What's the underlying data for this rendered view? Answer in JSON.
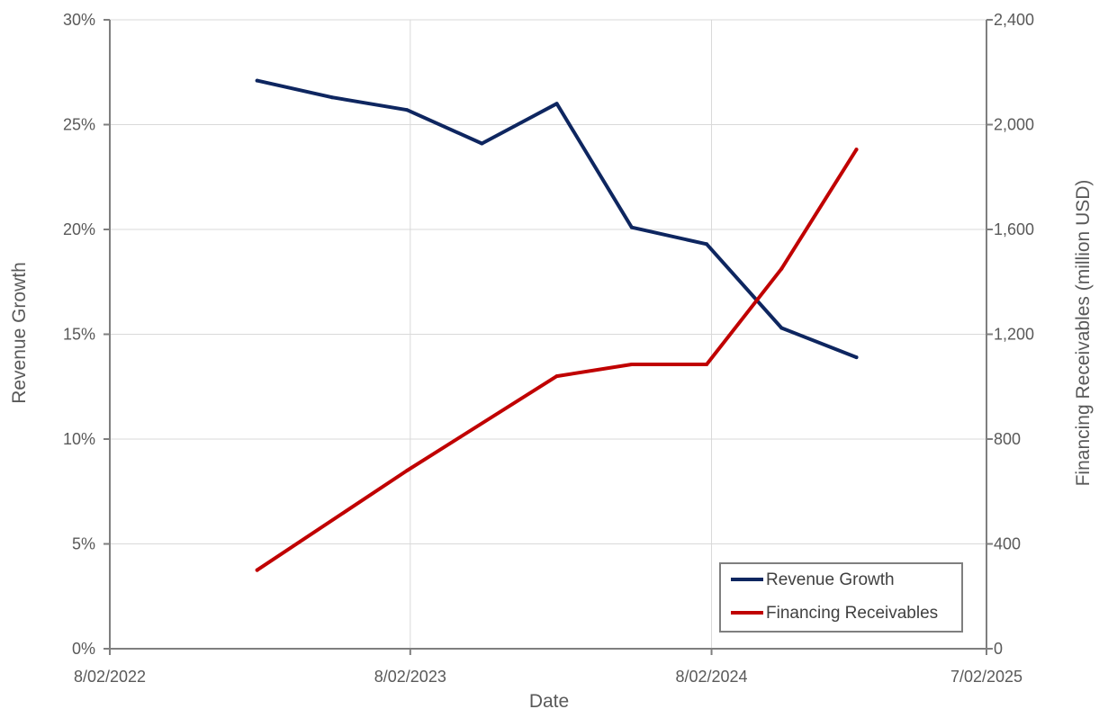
{
  "chart_data": {
    "type": "line",
    "title": "",
    "xlabel": "Date",
    "ylabel": "Revenue Growth",
    "y2label": "Financing Receivables (million USD)",
    "x_ticks": [
      "8/02/2022",
      "8/02/2023",
      "8/02/2024",
      "7/02/2025"
    ],
    "y_ticks": [
      "0%",
      "5%",
      "10%",
      "15%",
      "20%",
      "25%",
      "30%"
    ],
    "y2_ticks": [
      "0",
      "400",
      "800",
      "1,200",
      "1,600",
      "2,000",
      "2,400"
    ],
    "xlim": [
      "2022-08-02",
      "2025-07-02"
    ],
    "ylim": [
      0,
      30
    ],
    "y2lim": [
      0,
      2400
    ],
    "grid": true,
    "legend_position": "bottom-right",
    "series": [
      {
        "name": "Revenue Growth",
        "axis": "left",
        "color": "#0e2660",
        "x": [
          "2023-01-28",
          "2023-04-29",
          "2023-07-29",
          "2023-10-28",
          "2024-01-27",
          "2024-04-27",
          "2024-07-27",
          "2024-10-26",
          "2025-01-25"
        ],
        "values": [
          27.1,
          26.3,
          25.7,
          24.1,
          26.0,
          20.1,
          19.3,
          15.3,
          13.9
        ]
      },
      {
        "name": "Financing Receivables",
        "axis": "right",
        "color": "#c00000",
        "x": [
          "2023-01-28",
          "2023-07-29",
          "2024-01-27",
          "2024-04-27",
          "2024-07-27",
          "2024-10-26",
          "2025-01-25"
        ],
        "values": [
          300,
          680,
          1040,
          1085,
          1085,
          1450,
          1905
        ]
      }
    ]
  }
}
